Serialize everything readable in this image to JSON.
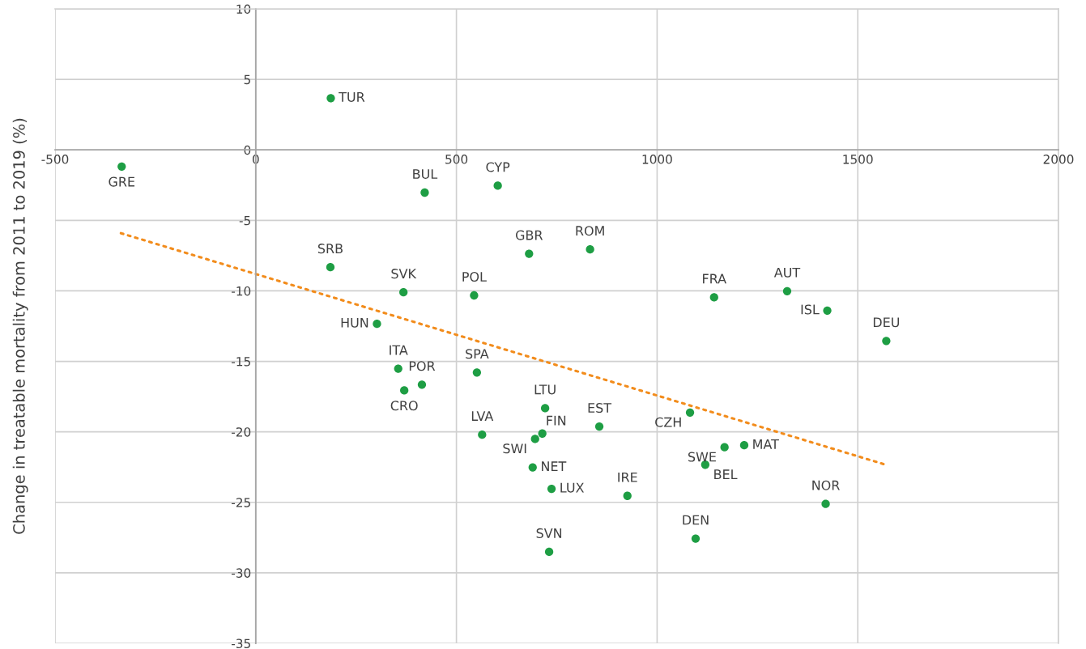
{
  "chart_data": {
    "type": "scatter",
    "ylabel": "Change in treatable mortality from 2011 to 2019 (%)",
    "xlim": [
      -500,
      2000
    ],
    "xticks": [
      -500,
      0,
      500,
      1000,
      1500,
      2000
    ],
    "ylim": [
      -35,
      10
    ],
    "yticks": [
      -35,
      -30,
      -25,
      -20,
      -15,
      -10,
      -5,
      0,
      5,
      10
    ],
    "grid": true,
    "marker": "circle",
    "series": [
      {
        "color": "#1e9e44",
        "x": [
          -334,
          187,
          421,
          603,
          186,
          368,
          544,
          681,
          833,
          551,
          1142,
          1324,
          1424,
          1571,
          721,
          564,
          714,
          696,
          856,
          1082,
          1168,
          1217,
          1120,
          690,
          737,
          926,
          1420,
          1096,
          731,
          302,
          355,
          414,
          370
        ],
        "values": [
          -1.18,
          3.67,
          -3.03,
          -2.54,
          -8.32,
          -10.1,
          -10.32,
          -7.37,
          -7.06,
          -15.79,
          -10.46,
          -10.02,
          -11.4,
          -13.55,
          -18.32,
          -20.2,
          -20.12,
          -20.5,
          -19.62,
          -18.63,
          -21.09,
          -20.95,
          -22.33,
          -22.52,
          -24.04,
          -24.54,
          -25.11,
          -27.57,
          -28.51,
          -12.34,
          -15.52,
          -16.65,
          -17.06
        ]
      },
      {
        "type": "line",
        "color": "#f28c1c",
        "line_style": "dotted",
        "marker": "none",
        "x": [
          -336,
          1566
        ],
        "values": [
          -5.91,
          -22.3
        ]
      }
    ],
    "annotations": [
      {
        "text": "GRE",
        "x": -334,
        "y": -1.18
      },
      {
        "text": "TUR",
        "x": 187,
        "y": 3.67
      },
      {
        "text": "BUL",
        "x": 421,
        "y": -3.03
      },
      {
        "text": "CYP",
        "x": 603,
        "y": -2.54
      },
      {
        "text": "SRB",
        "x": 186,
        "y": -8.32
      },
      {
        "text": "SVK",
        "x": 368,
        "y": -10.1
      },
      {
        "text": "POL",
        "x": 544,
        "y": -10.32
      },
      {
        "text": "GBR",
        "x": 681,
        "y": -7.37
      },
      {
        "text": "ROM",
        "x": 833,
        "y": -7.06
      },
      {
        "text": "SPA",
        "x": 551,
        "y": -15.79
      },
      {
        "text": "FRA",
        "x": 1142,
        "y": -10.46
      },
      {
        "text": "AUT",
        "x": 1324,
        "y": -10.02
      },
      {
        "text": "ISL",
        "x": 1424,
        "y": -11.4
      },
      {
        "text": "DEU",
        "x": 1571,
        "y": -13.55
      },
      {
        "text": "LTU",
        "x": 721,
        "y": -18.32
      },
      {
        "text": "LVA",
        "x": 564,
        "y": -20.2
      },
      {
        "text": "FIN",
        "x": 714,
        "y": -20.12
      },
      {
        "text": "SWI",
        "x": 696,
        "y": -20.5
      },
      {
        "text": "EST",
        "x": 856,
        "y": -19.62
      },
      {
        "text": "CZH",
        "x": 1082,
        "y": -18.63
      },
      {
        "text": "SWE",
        "x": 1168,
        "y": -21.09
      },
      {
        "text": "MAT",
        "x": 1217,
        "y": -20.95
      },
      {
        "text": "BEL",
        "x": 1120,
        "y": -22.33
      },
      {
        "text": "NET",
        "x": 690,
        "y": -22.52
      },
      {
        "text": "LUX",
        "x": 737,
        "y": -24.04
      },
      {
        "text": "IRE",
        "x": 926,
        "y": -24.54
      },
      {
        "text": "NOR",
        "x": 1420,
        "y": -25.11
      },
      {
        "text": "DEN",
        "x": 1096,
        "y": -27.57
      },
      {
        "text": "SVN",
        "x": 731,
        "y": -28.51
      },
      {
        "text": "HUN",
        "x": 302,
        "y": -12.34
      },
      {
        "text": "ITA",
        "x": 355,
        "y": -15.52
      },
      {
        "text": "POR",
        "x": 414,
        "y": -16.65
      },
      {
        "text": "CRO",
        "x": 370,
        "y": -17.06
      }
    ]
  }
}
